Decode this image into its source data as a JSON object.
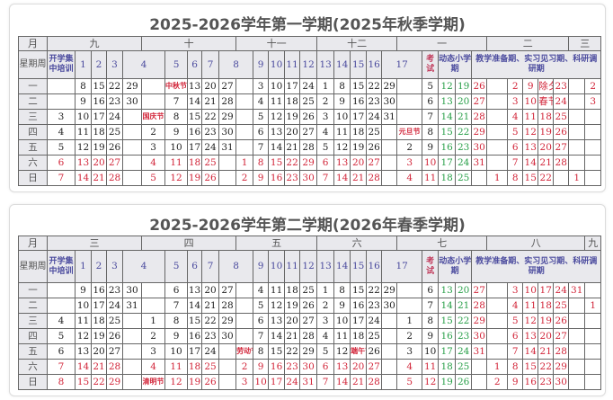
{
  "colors": {
    "black": "#222222",
    "red": "#d2263a",
    "green": "#2aa04a",
    "header_text": "#4b4b9e",
    "header_bg": "#e9e9ed"
  },
  "semesters": [
    {
      "title": "2025-2026学年第一学期(2025年秋季学期)",
      "month_label": "月",
      "months": [
        "九",
        "十",
        "十一",
        "十二",
        "一",
        "二",
        "三"
      ],
      "headers": [
        "星期周",
        "开学集中培训",
        "1",
        "2",
        "3",
        "4",
        "5",
        "6",
        "7",
        "8",
        "9",
        "10",
        "11",
        "12",
        "13",
        "14",
        "15",
        "16",
        "17",
        "考试",
        "动态小学期",
        "教学准备期、实习见习期、科研调研期"
      ],
      "rows": [
        {
          "label": "一",
          "cells": [
            "",
            "8",
            "15",
            "22",
            "29",
            "",
            "中秋节",
            "13",
            "20",
            "27",
            "",
            "3",
            "10",
            "17",
            "24",
            "1",
            "8",
            "15",
            "22",
            "29",
            "",
            "5",
            "12",
            "19",
            "26",
            "",
            "2",
            "9",
            "除夕",
            "23",
            "",
            "2"
          ],
          "colors": "kkkkkkrkkkkkkkkkkkkkkkggrrrrrrrr"
        },
        {
          "label": "二",
          "cells": [
            "",
            "9",
            "16",
            "23",
            "30",
            "",
            "7",
            "14",
            "21",
            "28",
            "",
            "4",
            "11",
            "18",
            "25",
            "2",
            "9",
            "16",
            "23",
            "30",
            "",
            "6",
            "13",
            "20",
            "27",
            "",
            "3",
            "10",
            "春节",
            "24",
            "",
            "3"
          ],
          "colors": "kkkkkkkkkkkkkkkkkkkkkkggrrrrrrrr"
        },
        {
          "label": "三",
          "cells": [
            "3",
            "10",
            "17",
            "24",
            "",
            "国庆节",
            "8",
            "15",
            "22",
            "29",
            "",
            "5",
            "12",
            "19",
            "26",
            "3",
            "10",
            "17",
            "24",
            "31",
            "",
            "7",
            "14",
            "21",
            "28",
            "",
            "4",
            "11",
            "18",
            "25",
            "",
            ""
          ],
          "colors": "kkkkkrkkkkkkkkkkkkkkkkggrrrrrrrr"
        },
        {
          "label": "四",
          "cells": [
            "4",
            "11",
            "18",
            "25",
            "",
            "2",
            "9",
            "16",
            "23",
            "30",
            "",
            "6",
            "13",
            "20",
            "27",
            "4",
            "11",
            "18",
            "25",
            "",
            "元旦节",
            "8",
            "15",
            "22",
            "29",
            "",
            "5",
            "12",
            "19",
            "26",
            "",
            ""
          ],
          "colors": "kkkkkkkkkkkkkkkkkkkkrkggrrrrrrrr"
        },
        {
          "label": "五",
          "cells": [
            "5",
            "12",
            "19",
            "26",
            "",
            "3",
            "10",
            "17",
            "24",
            "31",
            "",
            "7",
            "14",
            "21",
            "28",
            "5",
            "12",
            "19",
            "26",
            "",
            "2",
            "9",
            "16",
            "23",
            "30",
            "",
            "6",
            "13",
            "20",
            "27",
            "",
            ""
          ],
          "colors": "kkkkkkkkkkkkkkkkkkkkkkggrrrrrrrr"
        },
        {
          "label": "六",
          "cells": [
            "6",
            "13",
            "20",
            "27",
            "",
            "4",
            "11",
            "18",
            "25",
            "",
            "1",
            "8",
            "15",
            "22",
            "29",
            "6",
            "13",
            "20",
            "27",
            "",
            "3",
            "10",
            "17",
            "24",
            "31",
            "",
            "7",
            "14",
            "21",
            "28",
            "",
            ""
          ],
          "colors": "rrrrrrrrrrrrrrrrrrrrrrggrrrrrrrr"
        },
        {
          "label": "日",
          "cells": [
            "7",
            "14",
            "21",
            "28",
            "",
            "5",
            "12",
            "19",
            "26",
            "",
            "2",
            "9",
            "16",
            "23",
            "30",
            "7",
            "14",
            "21",
            "28",
            "",
            "4",
            "11",
            "18",
            "25",
            "",
            "1",
            "8",
            "15",
            "22",
            "",
            "1",
            ""
          ],
          "colors": "rrrrrrrrrrrrrrrrrrrrrrggrrrrrrrr"
        }
      ]
    },
    {
      "title": "2025-2026学年第二学期(2026年春季学期)",
      "month_label": "月",
      "months": [
        "三",
        "四",
        "五",
        "六",
        "七",
        "八",
        "九"
      ],
      "headers": [
        "星期周",
        "开学集中培训",
        "1",
        "2",
        "3",
        "4",
        "5",
        "6",
        "7",
        "8",
        "9",
        "10",
        "11",
        "12",
        "13",
        "14",
        "15",
        "16",
        "17",
        "考试",
        "动态小学期",
        "教学准备期、实习见习期、科研调研期"
      ],
      "rows": [
        {
          "label": "一",
          "cells": [
            "",
            "9",
            "16",
            "23",
            "30",
            "",
            "6",
            "13",
            "20",
            "27",
            "",
            "4",
            "11",
            "18",
            "25",
            "1",
            "8",
            "15",
            "22",
            "29",
            "",
            "6",
            "13",
            "20",
            "27",
            "",
            "3",
            "10",
            "17",
            "24",
            "31",
            ""
          ],
          "colors": "kkkkkkkkkkkkkkkkkkkkkkggrrrrrrrr"
        },
        {
          "label": "二",
          "cells": [
            "",
            "10",
            "17",
            "24",
            "31",
            "",
            "7",
            "14",
            "21",
            "28",
            "",
            "5",
            "12",
            "19",
            "26",
            "2",
            "9",
            "16",
            "23",
            "30",
            "",
            "7",
            "14",
            "21",
            "28",
            "",
            "4",
            "11",
            "18",
            "25",
            "",
            "1"
          ],
          "colors": "kkkkkkkkkkkkkkkkkkkkkkggrrrrrrrr"
        },
        {
          "label": "三",
          "cells": [
            "4",
            "11",
            "18",
            "25",
            "",
            "1",
            "8",
            "15",
            "22",
            "29",
            "",
            "6",
            "13",
            "20",
            "27",
            "3",
            "10",
            "17",
            "24",
            "",
            "1",
            "8",
            "15",
            "22",
            "29",
            "",
            "5",
            "12",
            "19",
            "26",
            "",
            ""
          ],
          "colors": "kkkkkkkkkkkkkkkkkkkkkkggrrrrrrrr"
        },
        {
          "label": "四",
          "cells": [
            "5",
            "12",
            "19",
            "26",
            "",
            "2",
            "9",
            "16",
            "23",
            "30",
            "",
            "7",
            "14",
            "21",
            "28",
            "4",
            "11",
            "18",
            "25",
            "",
            "2",
            "9",
            "16",
            "23",
            "30",
            "",
            "6",
            "13",
            "20",
            "27",
            "",
            ""
          ],
          "colors": "kkkkkkkkkkkkkkkkkkkkkkggrrrrrrrr"
        },
        {
          "label": "五",
          "cells": [
            "6",
            "13",
            "20",
            "27",
            "",
            "3",
            "10",
            "17",
            "24",
            "",
            "劳动节",
            "8",
            "15",
            "22",
            "29",
            "5",
            "12",
            "端午节",
            "26",
            "",
            "3",
            "10",
            "17",
            "24",
            "31",
            "",
            "7",
            "14",
            "21",
            "28",
            "",
            ""
          ],
          "colors": "kkkkkkkkkkrkkkkkkrkkkkggrrrrrrrr"
        },
        {
          "label": "六",
          "cells": [
            "7",
            "14",
            "21",
            "28",
            "",
            "4",
            "11",
            "18",
            "25",
            "",
            "2",
            "9",
            "16",
            "23",
            "30",
            "6",
            "13",
            "20",
            "27",
            "",
            "4",
            "11",
            "18",
            "25",
            "",
            "1",
            "8",
            "15",
            "22",
            "29",
            "",
            ""
          ],
          "colors": "rrrrrrrrrrrrrrrrrrrrrrggrrrrrrrr"
        },
        {
          "label": "日",
          "cells": [
            "8",
            "15",
            "22",
            "29",
            "",
            "清明节",
            "12",
            "19",
            "26",
            "",
            "3",
            "10",
            "17",
            "24",
            "31",
            "7",
            "14",
            "21",
            "28",
            "",
            "5",
            "12",
            "19",
            "26",
            "",
            "2",
            "9",
            "16",
            "23",
            "30",
            "",
            ""
          ],
          "colors": "rrrrrrrrrrrrrrrrrrrrrrggrrrrrrrr"
        }
      ]
    }
  ]
}
